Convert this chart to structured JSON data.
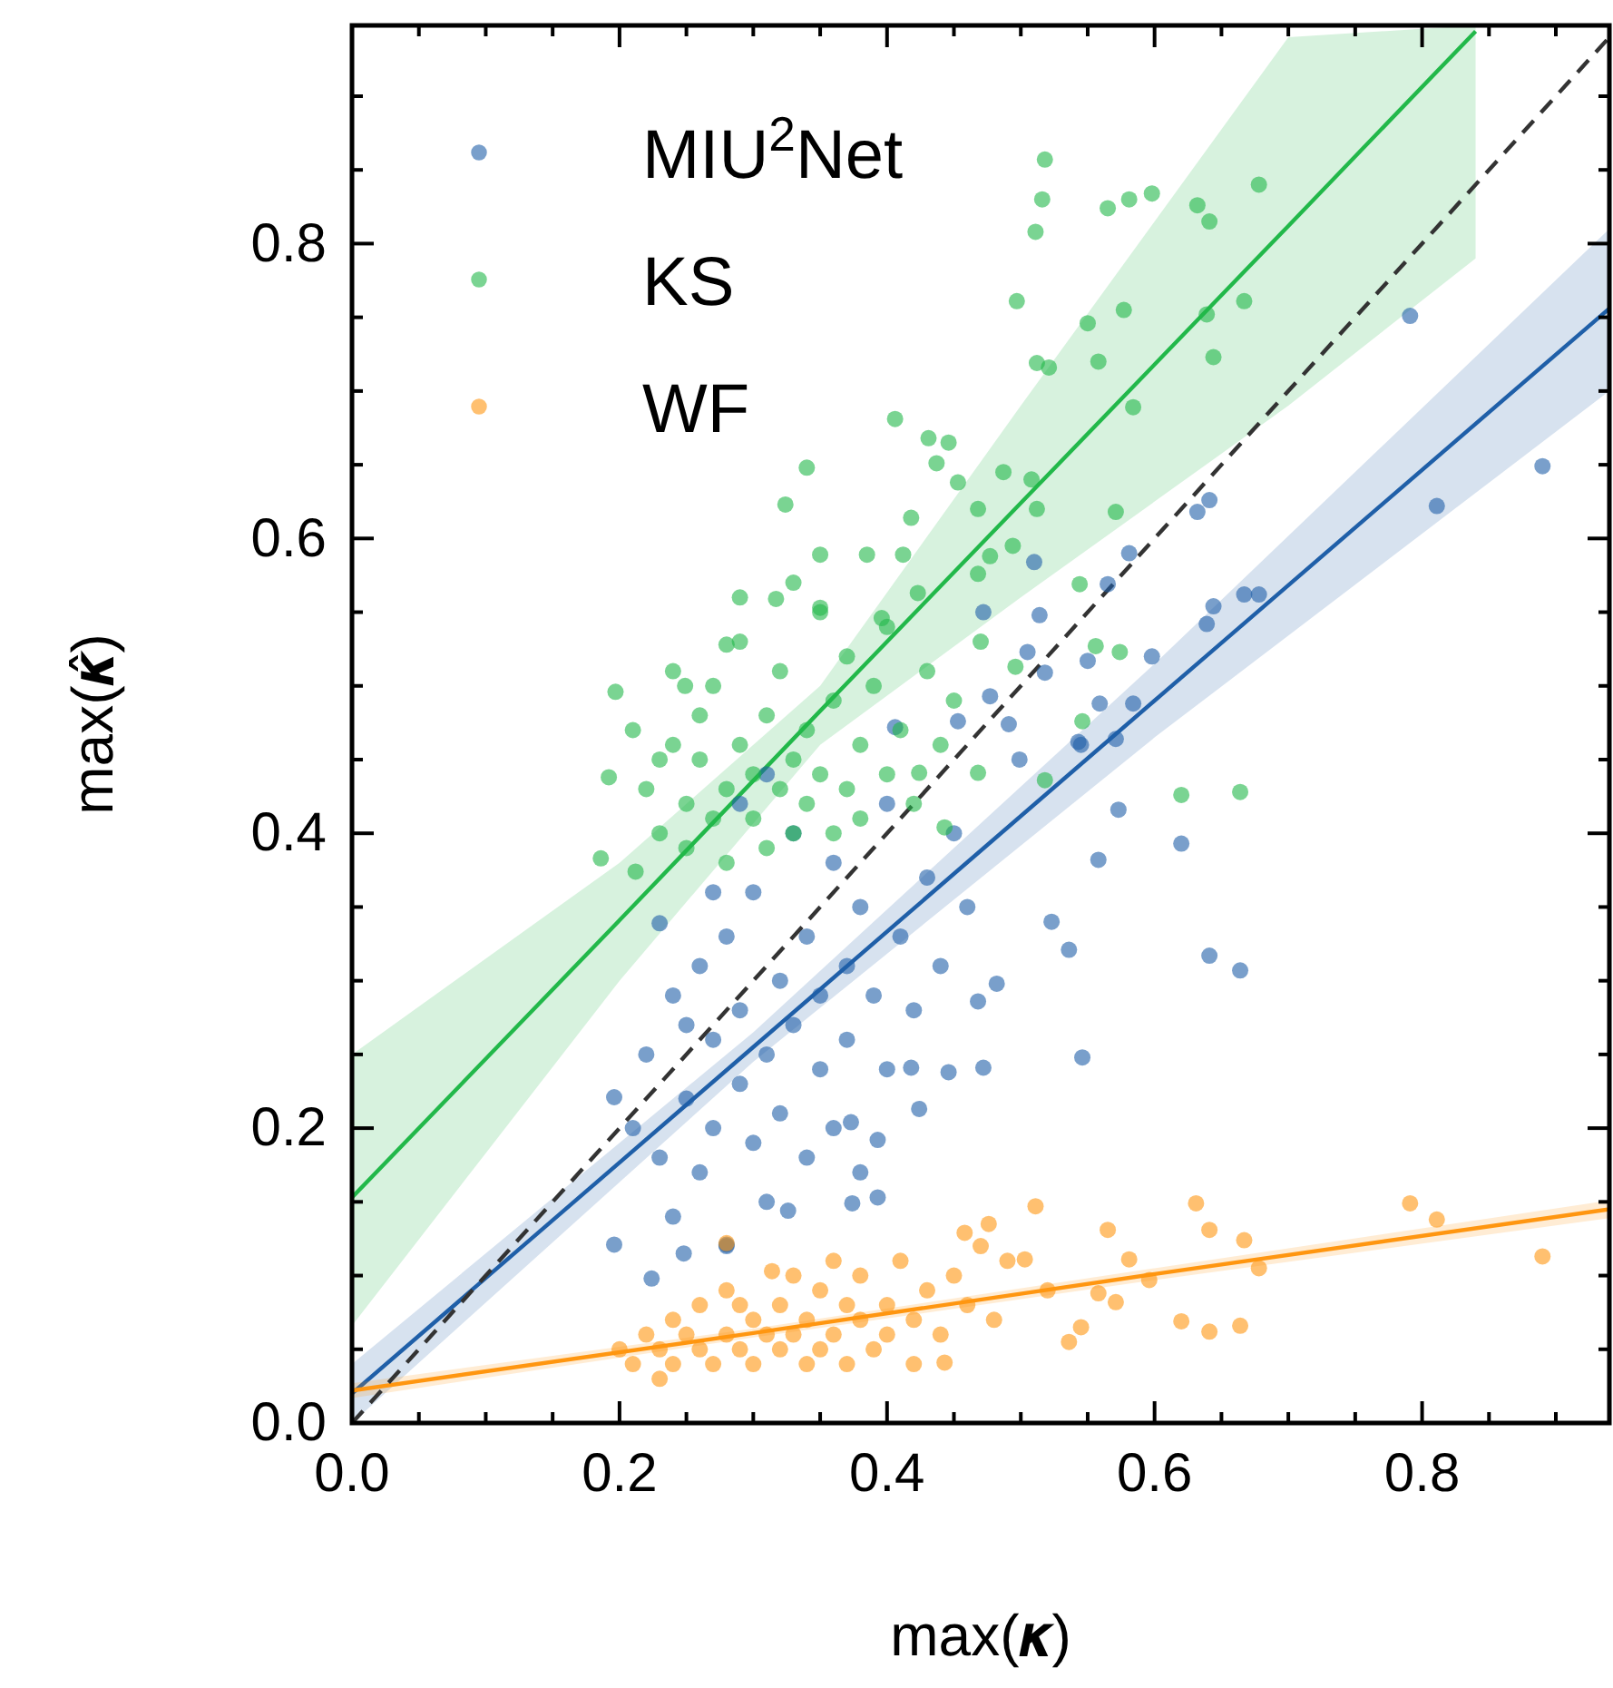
{
  "chart_data": {
    "type": "scatter",
    "xlabel": "max(𝜿)",
    "ylabel": "max(𝜿̂)",
    "xlim": [
      0,
      0.94
    ],
    "ylim": [
      0,
      0.948
    ],
    "xticks": [
      {
        "value": 0,
        "label": "0.0"
      },
      {
        "value": 0.05,
        "label": null
      },
      {
        "value": 0.1,
        "label": null
      },
      {
        "value": 0.15,
        "label": null
      },
      0.2,
      {
        "value": 0.25,
        "label": null
      },
      {
        "value": 0.3,
        "label": null
      },
      {
        "value": 0.35,
        "label": null
      },
      0.4,
      {
        "value": 0.45,
        "label": null
      },
      {
        "value": 0.5,
        "label": null
      },
      {
        "value": 0.55,
        "label": null
      },
      0.6,
      {
        "value": 0.65,
        "label": null
      },
      {
        "value": 0.7,
        "label": null
      },
      {
        "value": 0.75,
        "label": null
      },
      0.8,
      {
        "value": 0.85,
        "label": null
      },
      {
        "value": 0.9,
        "label": null
      }
    ],
    "yticks": [
      {
        "value": 0,
        "label": "0.0"
      },
      {
        "value": 0.05,
        "label": null
      },
      {
        "value": 0.1,
        "label": null
      },
      {
        "value": 0.15,
        "label": null
      },
      0.2,
      {
        "value": 0.25,
        "label": null
      },
      {
        "value": 0.3,
        "label": null
      },
      {
        "value": 0.35,
        "label": null
      },
      0.4,
      {
        "value": 0.45,
        "label": null
      },
      {
        "value": 0.5,
        "label": null
      },
      {
        "value": 0.55,
        "label": null
      },
      0.6,
      {
        "value": 0.65,
        "label": null
      },
      {
        "value": 0.7,
        "label": null
      },
      {
        "value": 0.75,
        "label": null
      },
      0.8,
      {
        "value": 0.85,
        "label": null
      },
      {
        "value": 0.9,
        "label": null
      }
    ],
    "grid": false,
    "legend": "top left",
    "series": [
      {
        "type": "line",
        "color": "#22b84a",
        "x": [
          0,
          0.2,
          0.35,
          0.5,
          0.7,
          0.84
        ],
        "values": [
          0.153,
          0.341,
          0.483,
          0.624,
          0.812,
          0.944
        ],
        "lower": [
          0.066,
          0.3,
          0.46,
          0.56,
          0.69,
          0.79
        ],
        "upper": [
          0.25,
          0.38,
          0.5,
          0.69,
          0.94,
          0.948
        ]
      },
      {
        "type": "line",
        "color": "#1f5fa8",
        "x": [
          0,
          0.3,
          0.6,
          0.94
        ],
        "values": [
          0.02,
          0.255,
          0.49,
          0.756
        ],
        "lower": [
          0.0,
          0.245,
          0.465,
          0.7
        ],
        "upper": [
          0.04,
          0.265,
          0.515,
          0.81
        ]
      },
      {
        "type": "line",
        "color": "#ff9610",
        "x": [
          0,
          0.3,
          0.6,
          0.94
        ],
        "values": [
          0.022,
          0.061,
          0.101,
          0.145
        ],
        "lower": [
          0.017,
          0.058,
          0.097,
          0.139
        ],
        "upper": [
          0.027,
          0.064,
          0.105,
          0.151
        ]
      },
      {
        "type": "line",
        "color": "#333333",
        "line_style": "dashed",
        "x": [
          0,
          0.94
        ],
        "values": [
          0,
          0.94
        ]
      },
      {
        "name": "MIU$^{2}$Net",
        "marker": "circle",
        "color": "#1f5fa8",
        "x": [
          0.791,
          0.89,
          0.811,
          0.641,
          0.632,
          0.581,
          0.565,
          0.51,
          0.514,
          0.472,
          0.644,
          0.667,
          0.678,
          0.639,
          0.598,
          0.55,
          0.505,
          0.518,
          0.559,
          0.584,
          0.477,
          0.406,
          0.453,
          0.491,
          0.545,
          0.571,
          0.573,
          0.62,
          0.558,
          0.523,
          0.536,
          0.641,
          0.664,
          0.482,
          0.468,
          0.546,
          0.472,
          0.424,
          0.446,
          0.23,
          0.196,
          0.196,
          0.224,
          0.28,
          0.248,
          0.326,
          0.374,
          0.393,
          0.393,
          0.373,
          0.418,
          0.499,
          0.543,
          0.22,
          0.23,
          0.24,
          0.24,
          0.25,
          0.26,
          0.26,
          0.27,
          0.27,
          0.28,
          0.28,
          0.29,
          0.29,
          0.3,
          0.3,
          0.31,
          0.31,
          0.32,
          0.32,
          0.33,
          0.33,
          0.34,
          0.34,
          0.35,
          0.35,
          0.36,
          0.36,
          0.37,
          0.37,
          0.38,
          0.38,
          0.39,
          0.4,
          0.4,
          0.41,
          0.42,
          0.43,
          0.44,
          0.45,
          0.46,
          0.25,
          0.21,
          0.27,
          0.29,
          0.31
        ],
        "values": [
          0.751,
          0.649,
          0.622,
          0.626,
          0.618,
          0.59,
          0.569,
          0.584,
          0.548,
          0.55,
          0.554,
          0.562,
          0.562,
          0.542,
          0.52,
          0.517,
          0.523,
          0.509,
          0.488,
          0.488,
          0.493,
          0.472,
          0.476,
          0.474,
          0.46,
          0.464,
          0.416,
          0.393,
          0.382,
          0.34,
          0.321,
          0.317,
          0.307,
          0.298,
          0.286,
          0.248,
          0.241,
          0.213,
          0.238,
          0.339,
          0.221,
          0.121,
          0.098,
          0.121,
          0.115,
          0.144,
          0.149,
          0.153,
          0.192,
          0.204,
          0.241,
          0.45,
          0.462,
          0.25,
          0.18,
          0.29,
          0.14,
          0.22,
          0.31,
          0.17,
          0.26,
          0.2,
          0.12,
          0.33,
          0.23,
          0.28,
          0.19,
          0.36,
          0.25,
          0.15,
          0.3,
          0.21,
          0.27,
          0.4,
          0.18,
          0.33,
          0.24,
          0.29,
          0.38,
          0.2,
          0.31,
          0.26,
          0.35,
          0.17,
          0.29,
          0.42,
          0.24,
          0.33,
          0.28,
          0.37,
          0.31,
          0.4,
          0.35,
          0.27,
          0.2,
          0.36,
          0.42,
          0.44
        ]
      },
      {
        "name": "KS",
        "marker": "circle",
        "color": "#22b84a",
        "x": [
          0.518,
          0.516,
          0.511,
          0.565,
          0.581,
          0.598,
          0.632,
          0.641,
          0.678,
          0.497,
          0.55,
          0.577,
          0.639,
          0.667,
          0.512,
          0.521,
          0.558,
          0.644,
          0.584,
          0.406,
          0.431,
          0.446,
          0.437,
          0.34,
          0.453,
          0.487,
          0.508,
          0.324,
          0.468,
          0.418,
          0.512,
          0.571,
          0.35,
          0.385,
          0.412,
          0.477,
          0.494,
          0.468,
          0.317,
          0.35,
          0.423,
          0.544,
          0.396,
          0.574,
          0.556,
          0.28,
          0.249,
          0.197,
          0.546,
          0.496,
          0.192,
          0.186,
          0.212,
          0.62,
          0.664,
          0.518,
          0.468,
          0.424,
          0.443,
          0.22,
          0.23,
          0.24,
          0.25,
          0.25,
          0.26,
          0.26,
          0.27,
          0.27,
          0.28,
          0.28,
          0.29,
          0.29,
          0.3,
          0.3,
          0.31,
          0.31,
          0.32,
          0.32,
          0.33,
          0.33,
          0.34,
          0.34,
          0.35,
          0.35,
          0.36,
          0.36,
          0.37,
          0.37,
          0.38,
          0.38,
          0.39,
          0.4,
          0.4,
          0.41,
          0.42,
          0.43,
          0.44,
          0.45,
          0.47,
          0.29,
          0.24,
          0.21,
          0.23,
          0.33
        ],
        "values": [
          0.857,
          0.83,
          0.808,
          0.824,
          0.83,
          0.834,
          0.826,
          0.815,
          0.84,
          0.761,
          0.746,
          0.755,
          0.752,
          0.761,
          0.719,
          0.716,
          0.72,
          0.723,
          0.689,
          0.681,
          0.668,
          0.665,
          0.651,
          0.648,
          0.638,
          0.645,
          0.64,
          0.623,
          0.62,
          0.614,
          0.62,
          0.618,
          0.589,
          0.589,
          0.589,
          0.588,
          0.595,
          0.576,
          0.559,
          0.553,
          0.563,
          0.569,
          0.546,
          0.523,
          0.527,
          0.528,
          0.5,
          0.496,
          0.476,
          0.513,
          0.438,
          0.383,
          0.374,
          0.426,
          0.428,
          0.436,
          0.441,
          0.441,
          0.404,
          0.43,
          0.4,
          0.46,
          0.42,
          0.39,
          0.45,
          0.48,
          0.41,
          0.5,
          0.43,
          0.38,
          0.46,
          0.53,
          0.41,
          0.44,
          0.48,
          0.39,
          0.43,
          0.51,
          0.45,
          0.4,
          0.47,
          0.42,
          0.55,
          0.44,
          0.4,
          0.49,
          0.43,
          0.52,
          0.46,
          0.41,
          0.5,
          0.44,
          0.54,
          0.47,
          0.42,
          0.51,
          0.46,
          0.49,
          0.53,
          0.56,
          0.51,
          0.47,
          0.45,
          0.57
        ]
      },
      {
        "name": "WF",
        "marker": "circle",
        "color": "#ff9610",
        "x": [
          0.791,
          0.811,
          0.89,
          0.631,
          0.641,
          0.667,
          0.678,
          0.62,
          0.641,
          0.664,
          0.565,
          0.511,
          0.581,
          0.596,
          0.558,
          0.571,
          0.545,
          0.536,
          0.52,
          0.503,
          0.476,
          0.458,
          0.443,
          0.28,
          0.314,
          0.2,
          0.21,
          0.22,
          0.23,
          0.24,
          0.24,
          0.25,
          0.26,
          0.26,
          0.27,
          0.28,
          0.28,
          0.29,
          0.3,
          0.3,
          0.31,
          0.32,
          0.32,
          0.33,
          0.33,
          0.34,
          0.34,
          0.35,
          0.35,
          0.36,
          0.37,
          0.37,
          0.38,
          0.38,
          0.39,
          0.4,
          0.4,
          0.41,
          0.42,
          0.42,
          0.43,
          0.44,
          0.45,
          0.46,
          0.47,
          0.48,
          0.49,
          0.36,
          0.29,
          0.23
        ],
        "values": [
          0.149,
          0.138,
          0.113,
          0.149,
          0.131,
          0.124,
          0.105,
          0.069,
          0.062,
          0.066,
          0.131,
          0.147,
          0.111,
          0.097,
          0.088,
          0.082,
          0.065,
          0.055,
          0.09,
          0.111,
          0.135,
          0.129,
          0.041,
          0.122,
          0.103,
          0.05,
          0.04,
          0.06,
          0.05,
          0.07,
          0.04,
          0.06,
          0.05,
          0.08,
          0.04,
          0.06,
          0.09,
          0.05,
          0.07,
          0.04,
          0.06,
          0.08,
          0.05,
          0.1,
          0.06,
          0.04,
          0.07,
          0.09,
          0.05,
          0.06,
          0.08,
          0.04,
          0.07,
          0.1,
          0.05,
          0.08,
          0.06,
          0.11,
          0.07,
          0.04,
          0.09,
          0.06,
          0.1,
          0.08,
          0.12,
          0.07,
          0.11,
          0.11,
          0.08,
          0.03
        ]
      }
    ]
  }
}
